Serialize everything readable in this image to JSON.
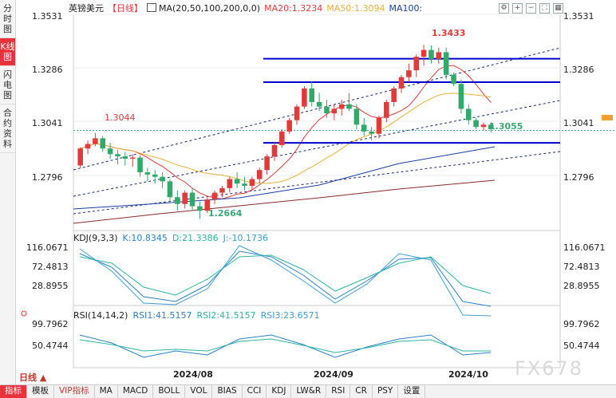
{
  "side_tabs": [
    {
      "label": "分时图",
      "active": false
    },
    {
      "label": "K线图",
      "active": true
    },
    {
      "label": "闪电图",
      "active": false
    },
    {
      "label": "合约资料",
      "active": false
    }
  ],
  "header": {
    "symbol": "英镑美元",
    "period_tag": "【日线】",
    "ma_label": "MA(20,50,100,200,0,0)",
    "ma20": "MA20:1.3234",
    "ma50": "MA50:1.3094",
    "ma100": "MA100:",
    "colors": {
      "ma20": "#e23a3a",
      "ma50": "#e8b23a",
      "ma100": "#1a3fa8",
      "ma200": "#8b2a2a"
    }
  },
  "price_axis": {
    "ticks": [
      "1.3531",
      "1.3286",
      "1.3041",
      "1.2796"
    ],
    "current": "1.3041"
  },
  "price_annotations": {
    "high": "1.3433",
    "left_peak": "1.3044",
    "low": "1.2664",
    "recent_low": "1.3055"
  },
  "kdj": {
    "title": "KDJ(9,3,3)",
    "k": "K:10.8345",
    "d": "D:21.3386",
    "j": "J:-10.1736",
    "ticks": [
      "116.0671",
      "72.4813",
      "28.8955"
    ]
  },
  "rsi": {
    "title": "RSI(14,14,2)",
    "rsi1": "RSI1:41.5157",
    "rsi2": "RSI2:41.5157",
    "rsi3": "RSI3:23.6571",
    "ticks": [
      "99.7962",
      "50.4744"
    ]
  },
  "dates": [
    "2024/08",
    "2024/09",
    "2024/10"
  ],
  "period": "日线",
  "bottom_tabs": [
    {
      "label": "指标",
      "active": true
    },
    {
      "label": "模板"
    },
    {
      "label": "VIP指标",
      "vip": true
    },
    {
      "label": "MA"
    },
    {
      "label": "MACD"
    },
    {
      "label": "BOLL"
    },
    {
      "label": "VOL"
    },
    {
      "label": "BIAS"
    },
    {
      "label": "CCI"
    },
    {
      "label": "KDJ"
    },
    {
      "label": "LW&R"
    },
    {
      "label": "RSI"
    },
    {
      "label": "CR"
    },
    {
      "label": "PSY"
    },
    {
      "label": "设置"
    }
  ],
  "watermark": "FX678",
  "chart_data": {
    "type": "candlestick",
    "candles": [
      [
        1.29,
        1.298,
        1.289,
        1.2975
      ],
      [
        1.2975,
        1.301,
        1.295,
        1.2995
      ],
      [
        1.2995,
        1.3044,
        1.2985,
        1.302
      ],
      [
        1.302,
        1.303,
        1.296,
        1.2975
      ],
      [
        1.2975,
        1.3,
        1.293,
        1.295
      ],
      [
        1.295,
        1.297,
        1.2905,
        1.294
      ],
      [
        1.294,
        1.296,
        1.29,
        1.293
      ],
      [
        1.293,
        1.295,
        1.2895,
        1.2935
      ],
      [
        1.2935,
        1.2945,
        1.285,
        1.287
      ],
      [
        1.287,
        1.289,
        1.283,
        1.286
      ],
      [
        1.286,
        1.288,
        1.282,
        1.285
      ],
      [
        1.285,
        1.287,
        1.28,
        1.283
      ],
      [
        1.283,
        1.284,
        1.274,
        1.276
      ],
      [
        1.276,
        1.279,
        1.27,
        1.273
      ],
      [
        1.273,
        1.279,
        1.271,
        1.278
      ],
      [
        1.278,
        1.28,
        1.27,
        1.272
      ],
      [
        1.272,
        1.274,
        1.2664,
        1.27
      ],
      [
        1.27,
        1.276,
        1.269,
        1.275
      ],
      [
        1.275,
        1.279,
        1.273,
        1.278
      ],
      [
        1.278,
        1.281,
        1.276,
        1.28
      ],
      [
        1.28,
        1.285,
        1.278,
        1.284
      ],
      [
        1.284,
        1.287,
        1.28,
        1.282
      ],
      [
        1.282,
        1.285,
        1.279,
        1.281
      ],
      [
        1.281,
        1.285,
        1.279,
        1.284
      ],
      [
        1.284,
        1.289,
        1.282,
        1.288
      ],
      [
        1.288,
        1.295,
        1.286,
        1.294
      ],
      [
        1.294,
        1.3,
        1.292,
        1.299
      ],
      [
        1.299,
        1.306,
        1.298,
        1.305
      ],
      [
        1.305,
        1.311,
        1.304,
        1.31
      ],
      [
        1.31,
        1.317,
        1.308,
        1.316
      ],
      [
        1.316,
        1.325,
        1.315,
        1.324
      ],
      [
        1.324,
        1.327,
        1.316,
        1.318
      ],
      [
        1.318,
        1.322,
        1.314,
        1.316
      ],
      [
        1.316,
        1.319,
        1.311,
        1.313
      ],
      [
        1.313,
        1.317,
        1.31,
        1.315
      ],
      [
        1.315,
        1.319,
        1.312,
        1.317
      ],
      [
        1.317,
        1.322,
        1.314,
        1.315
      ],
      [
        1.315,
        1.317,
        1.306,
        1.308
      ],
      [
        1.308,
        1.311,
        1.303,
        1.305
      ],
      [
        1.305,
        1.307,
        1.301,
        1.304
      ],
      [
        1.304,
        1.312,
        1.302,
        1.311
      ],
      [
        1.311,
        1.319,
        1.309,
        1.318
      ],
      [
        1.318,
        1.325,
        1.316,
        1.324
      ],
      [
        1.324,
        1.33,
        1.322,
        1.329
      ],
      [
        1.329,
        1.335,
        1.327,
        1.332
      ],
      [
        1.332,
        1.339,
        1.329,
        1.338
      ],
      [
        1.338,
        1.3433,
        1.334,
        1.341
      ],
      [
        1.341,
        1.343,
        1.335,
        1.337
      ],
      [
        1.337,
        1.342,
        1.335,
        1.34
      ],
      [
        1.34,
        1.342,
        1.328,
        1.33
      ],
      [
        1.33,
        1.331,
        1.325,
        1.326
      ],
      [
        1.326,
        1.328,
        1.313,
        1.315
      ],
      [
        1.315,
        1.317,
        1.308,
        1.31
      ],
      [
        1.31,
        1.311,
        1.306,
        1.307
      ],
      [
        1.307,
        1.309,
        1.3055,
        1.308
      ],
      [
        1.308,
        1.309,
        1.3045,
        1.306
      ]
    ],
    "ylim": [
      1.262,
      1.356
    ],
    "hlines": [
      1.3371,
      1.3268,
      1.3
    ],
    "dashed_level": 1.3055,
    "price_axis_labels": [
      "1.3531",
      "1.3286",
      "1.3041",
      "1.2796"
    ],
    "kdj_ticks": [
      116.0671,
      72.4813,
      28.8955
    ],
    "rsi_ticks": [
      99.7962,
      50.4744
    ]
  }
}
